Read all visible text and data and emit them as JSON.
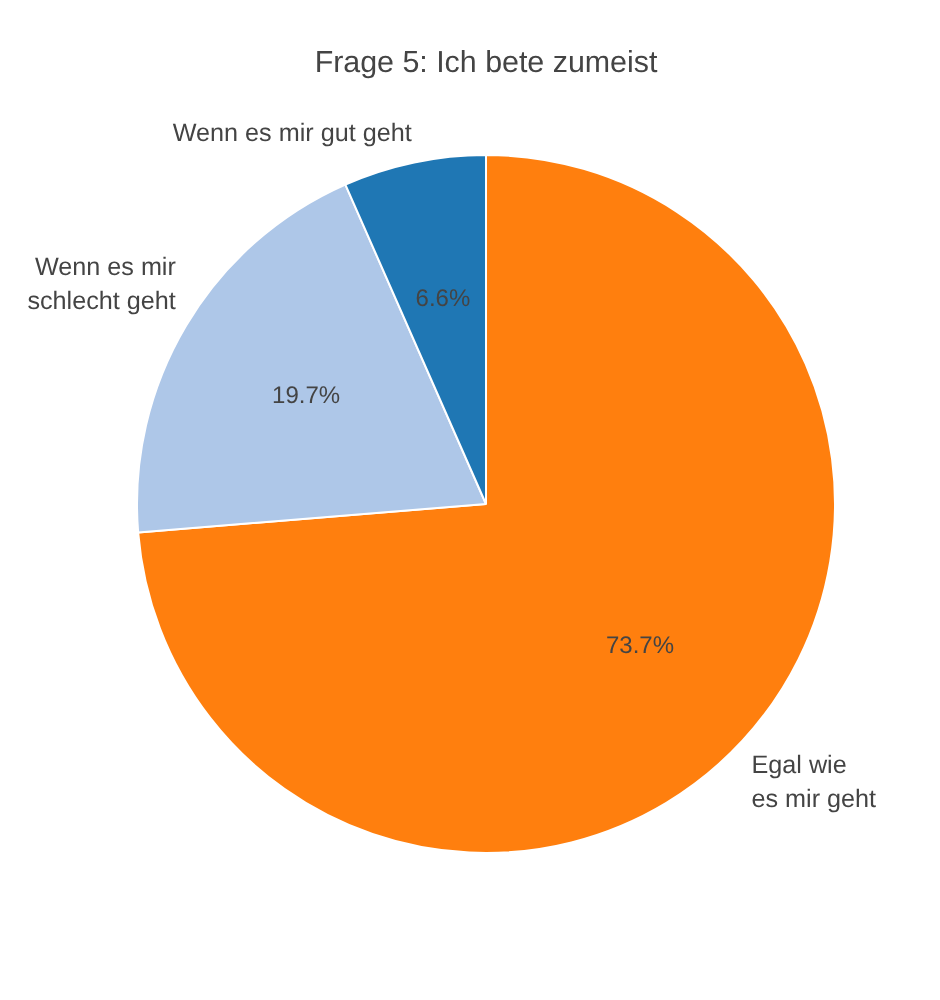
{
  "chart_data": {
    "type": "pie",
    "title": "Frage 5: Ich bete zumeist",
    "categories": [
      "Egal wie\nes mir geht",
      "Wenn es mir\nschlecht geht",
      "Wenn es mir gut geht"
    ],
    "values": [
      73.7,
      19.7,
      6.6
    ],
    "colors": [
      "#ff7f0e",
      "#aec7e8",
      "#1f77b4"
    ],
    "value_labels": [
      "73.7%",
      "19.7%",
      "6.6%"
    ]
  }
}
